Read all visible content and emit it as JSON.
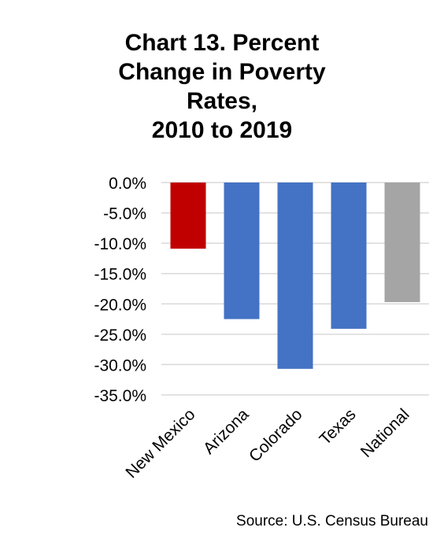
{
  "title_lines": [
    "Chart 13. Percent",
    "Change in Poverty",
    "Rates,",
    "2010 to 2019"
  ],
  "source": "Source: U.S. Census Bureau",
  "colors": {
    "new_mexico": "#c00000",
    "comparison_state": "#4472c4",
    "national": "#a5a5a5",
    "gridline": "#d9d9d9"
  },
  "chart_data": {
    "type": "bar",
    "title": "Chart 13. Percent Change in Poverty Rates, 2010 to 2019",
    "xlabel": "",
    "ylabel": "",
    "categories": [
      "New Mexico",
      "Arizona",
      "Colorado",
      "Texas",
      "National"
    ],
    "values": [
      -10.9,
      -22.5,
      -30.7,
      -24.1,
      -19.7
    ],
    "bar_colors": [
      "#c00000",
      "#4472c4",
      "#4472c4",
      "#4472c4",
      "#a5a5a5"
    ],
    "y_ticks": [
      "0.0%",
      "-5.0%",
      "-10.0%",
      "-15.0%",
      "-20.0%",
      "-25.0%",
      "-30.0%",
      "-35.0%"
    ],
    "y_tick_values": [
      0,
      -5,
      -10,
      -15,
      -20,
      -25,
      -30,
      -35
    ],
    "ylim": [
      -35,
      0
    ],
    "grid": true,
    "legend": "none",
    "x_tick_rotation": "-45 degrees"
  }
}
